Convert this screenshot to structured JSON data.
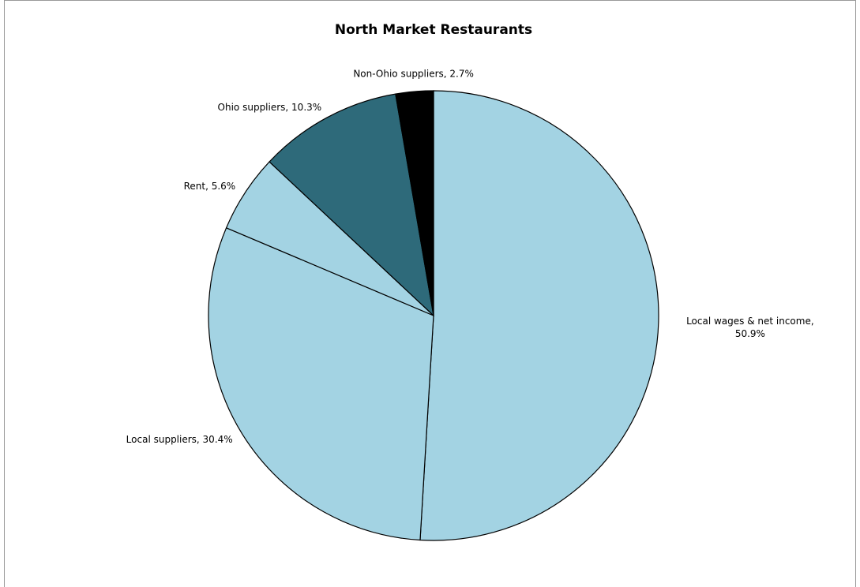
{
  "chart_data": {
    "type": "pie",
    "title": "North Market Restaurants",
    "values": [
      50.9,
      30.4,
      5.6,
      10.3,
      2.7
    ],
    "value_labels": [
      "Local wages & net income, 50.9%",
      "Local suppliers, 30.4%",
      "Rent, 5.6%",
      "Ohio suppliers, 10.3%",
      "Non-Ohio suppliers, 2.7%"
    ],
    "colors": [
      "#a3d3e3",
      "#a3d3e3",
      "#a3d3e3",
      "#2e6a7a",
      "#000000"
    ]
  }
}
